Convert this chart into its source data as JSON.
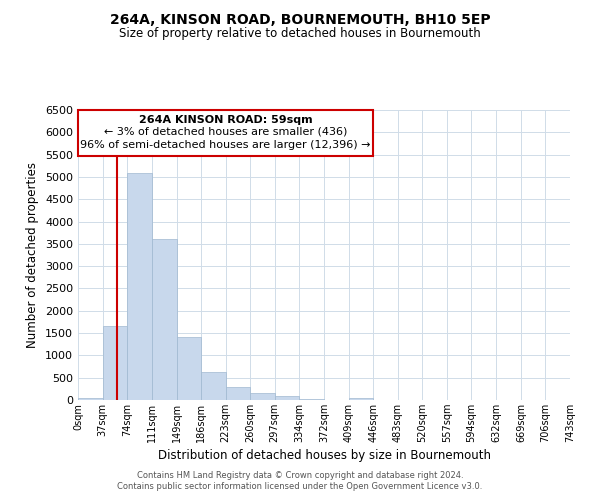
{
  "title": "264A, KINSON ROAD, BOURNEMOUTH, BH10 5EP",
  "subtitle": "Size of property relative to detached houses in Bournemouth",
  "xlabel": "Distribution of detached houses by size in Bournemouth",
  "ylabel": "Number of detached properties",
  "bin_edges": [
    0,
    37,
    74,
    111,
    149,
    186,
    223,
    260,
    297,
    334,
    372,
    409,
    446,
    483,
    520,
    557,
    594,
    632,
    669,
    706,
    743
  ],
  "bar_heights": [
    50,
    1650,
    5080,
    3600,
    1420,
    620,
    300,
    150,
    80,
    20,
    0,
    40,
    0,
    0,
    0,
    0,
    0,
    0,
    0,
    0
  ],
  "bar_color": "#c8d8ec",
  "bar_edgecolor": "#a0b8d0",
  "property_line_x": 59,
  "property_line_color": "#cc0000",
  "ylim": [
    0,
    6500
  ],
  "annotation_line1": "264A KINSON ROAD: 59sqm",
  "annotation_line2": "← 3% of detached houses are smaller (436)",
  "annotation_line3": "96% of semi-detached houses are larger (12,396) →",
  "annotation_box_color": "#ffffff",
  "annotation_box_edge": "#cc0000",
  "footer_line1": "Contains HM Land Registry data © Crown copyright and database right 2024.",
  "footer_line2": "Contains public sector information licensed under the Open Government Licence v3.0.",
  "tick_labels": [
    "0sqm",
    "37sqm",
    "74sqm",
    "111sqm",
    "149sqm",
    "186sqm",
    "223sqm",
    "260sqm",
    "297sqm",
    "334sqm",
    "372sqm",
    "409sqm",
    "446sqm",
    "483sqm",
    "520sqm",
    "557sqm",
    "594sqm",
    "632sqm",
    "669sqm",
    "706sqm",
    "743sqm"
  ],
  "background_color": "#ffffff",
  "grid_color": "#d0dce8"
}
